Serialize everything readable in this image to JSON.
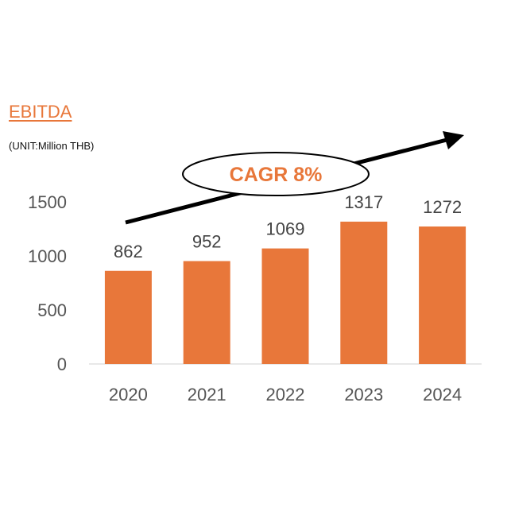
{
  "chart_data": {
    "type": "bar",
    "title": "EBITDA",
    "unit": "(UNIT:Million THB)",
    "categories": [
      "2020",
      "2021",
      "2022",
      "2023",
      "2024"
    ],
    "values": [
      862,
      952,
      1069,
      1317,
      1272
    ],
    "data_labels": [
      "862",
      "952",
      "1069",
      "1317",
      "1272"
    ],
    "yticks": [
      "0",
      "500",
      "1000",
      "1500"
    ],
    "ylim": [
      0,
      1500
    ],
    "annotation": "CAGR 8%",
    "bar_color": "#E8773A",
    "grid": false,
    "legend": "none"
  }
}
